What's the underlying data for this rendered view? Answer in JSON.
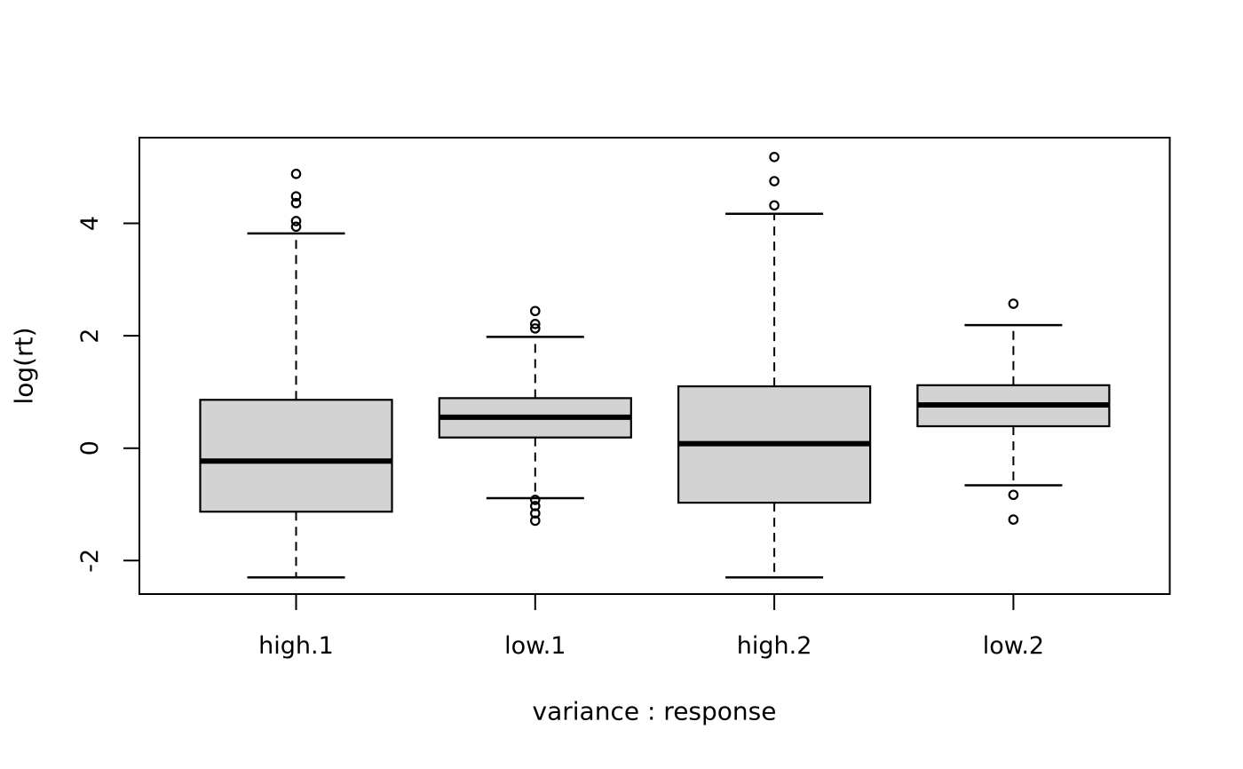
{
  "figure": {
    "background": "#ffffff",
    "text_color": "#000000"
  },
  "chart_data": {
    "type": "boxplot",
    "title": "",
    "xlabel": "variance : response",
    "ylabel": "log(rt)",
    "categories": [
      "high.1",
      "low.1",
      "high.2",
      "low.2"
    ],
    "yticks": [
      -2,
      0,
      2,
      4
    ],
    "ylim": [
      -2.6,
      5.5
    ],
    "grid": false,
    "box_fill": "#d3d3d3",
    "line_color": "#000000",
    "series": [
      {
        "name": "high.1",
        "q1": -1.13,
        "median": -0.23,
        "q3": 0.86,
        "whisker_low": -2.3,
        "whisker_high": 3.82,
        "outliers": [
          3.94,
          4.04,
          4.36,
          4.48,
          4.88
        ]
      },
      {
        "name": "low.1",
        "q1": 0.19,
        "median": 0.55,
        "q3": 0.89,
        "whisker_low": -0.89,
        "whisker_high": 1.98,
        "outliers": [
          -0.92,
          -1.03,
          -1.16,
          -1.29,
          2.13,
          2.21,
          2.44
        ]
      },
      {
        "name": "high.2",
        "q1": -0.97,
        "median": 0.08,
        "q3": 1.1,
        "whisker_low": -2.3,
        "whisker_high": 4.17,
        "outliers": [
          4.32,
          4.75,
          5.18
        ]
      },
      {
        "name": "low.2",
        "q1": 0.39,
        "median": 0.77,
        "q3": 1.12,
        "whisker_low": -0.66,
        "whisker_high": 2.19,
        "outliers": [
          -0.83,
          -1.27,
          2.57
        ]
      }
    ]
  }
}
